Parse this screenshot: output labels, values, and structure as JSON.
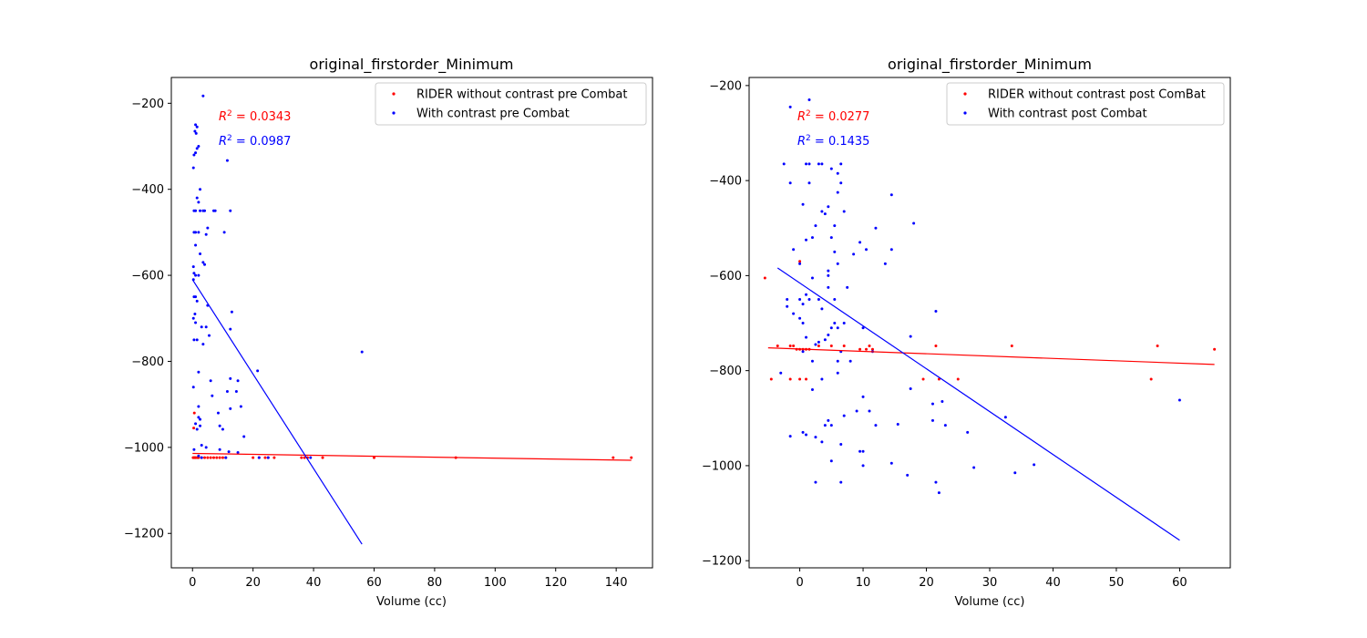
{
  "chart_data": [
    {
      "type": "scatter",
      "title": "original_firstorder_Minimum",
      "xlabel": "Volume (cc)",
      "ylabel": "",
      "xlim": [
        -7,
        152
      ],
      "ylim": [
        -1280,
        -140
      ],
      "xticks": [
        0,
        20,
        40,
        60,
        80,
        100,
        120,
        140
      ],
      "yticks": [
        -200,
        -400,
        -600,
        -800,
        -1000,
        -1200
      ],
      "xtick_labels": [
        "0",
        "20",
        "40",
        "60",
        "80",
        "100",
        "120",
        "140"
      ],
      "ytick_labels": [
        "−200",
        "−400",
        "−600",
        "−800",
        "−1000",
        "−1200"
      ],
      "legend_position": "top-right",
      "series": [
        {
          "name": "RIDER without contrast pre Combat",
          "color": "#ff0000",
          "r2_label": "= 0.0343",
          "fit": [
            [
              0,
              -1014
            ],
            [
              145,
              -1030
            ]
          ],
          "points": [
            [
              0.2,
              -1024
            ],
            [
              0.5,
              -1024
            ],
            [
              0.8,
              -1024
            ],
            [
              1,
              -1024
            ],
            [
              1.5,
              -1024
            ],
            [
              2,
              -1024
            ],
            [
              3,
              -1024
            ],
            [
              4,
              -1024
            ],
            [
              5,
              -1024
            ],
            [
              6,
              -1024
            ],
            [
              7,
              -1024
            ],
            [
              8,
              -1024
            ],
            [
              9,
              -1024
            ],
            [
              10,
              -1024
            ],
            [
              11,
              -1024
            ],
            [
              0.6,
              -920
            ],
            [
              0.4,
              -955
            ],
            [
              20,
              -1024
            ],
            [
              22,
              -1024
            ],
            [
              24,
              -1024
            ],
            [
              25,
              -1024
            ],
            [
              27,
              -1024
            ],
            [
              36,
              -1024
            ],
            [
              37,
              -1024
            ],
            [
              38,
              -1024
            ],
            [
              43,
              -1024
            ],
            [
              60,
              -1024
            ],
            [
              87,
              -1024
            ],
            [
              139,
              -1024
            ],
            [
              145,
              -1024
            ]
          ]
        },
        {
          "name": "With contrast pre Combat",
          "color": "#0000ff",
          "r2_label": "= 0.0987",
          "fit": [
            [
              0,
              -610
            ],
            [
              56,
              -1225
            ]
          ],
          "points": [
            [
              3.5,
              -183
            ],
            [
              1,
              -250
            ],
            [
              1.5,
              -255
            ],
            [
              0.8,
              -265
            ],
            [
              1.2,
              -270
            ],
            [
              2,
              -300
            ],
            [
              1.5,
              -305
            ],
            [
              0.5,
              -320
            ],
            [
              1,
              -315
            ],
            [
              0.3,
              -350
            ],
            [
              11.5,
              -333
            ],
            [
              2.5,
              -400
            ],
            [
              1.5,
              -420
            ],
            [
              2,
              -430
            ],
            [
              0.5,
              -450
            ],
            [
              1,
              -450
            ],
            [
              2.5,
              -450
            ],
            [
              3.5,
              -450
            ],
            [
              4,
              -450
            ],
            [
              7,
              -450
            ],
            [
              7.5,
              -450
            ],
            [
              12.5,
              -450
            ],
            [
              5,
              -490
            ],
            [
              0.5,
              -500
            ],
            [
              1,
              -500
            ],
            [
              2,
              -500
            ],
            [
              4.5,
              -505
            ],
            [
              10.5,
              -500
            ],
            [
              1,
              -530
            ],
            [
              2.5,
              -550
            ],
            [
              3.5,
              -570
            ],
            [
              4,
              -575
            ],
            [
              0.3,
              -580
            ],
            [
              0.5,
              -595
            ],
            [
              1,
              -600
            ],
            [
              2,
              -600
            ],
            [
              0.3,
              -610
            ],
            [
              0.5,
              -650
            ],
            [
              1,
              -650
            ],
            [
              1.5,
              -660
            ],
            [
              5,
              -670
            ],
            [
              0.8,
              -690
            ],
            [
              13,
              -685
            ],
            [
              0.3,
              -700
            ],
            [
              1,
              -710
            ],
            [
              3,
              -720
            ],
            [
              4.5,
              -720
            ],
            [
              12.5,
              -725
            ],
            [
              0.5,
              -750
            ],
            [
              1.5,
              -750
            ],
            [
              3.5,
              -760
            ],
            [
              5.5,
              -740
            ],
            [
              56,
              -778
            ],
            [
              2,
              -825
            ],
            [
              21.5,
              -822
            ],
            [
              6,
              -845
            ],
            [
              12.5,
              -840
            ],
            [
              15,
              -845
            ],
            [
              0.3,
              -860
            ],
            [
              11.5,
              -870
            ],
            [
              14.5,
              -870
            ],
            [
              6.5,
              -880
            ],
            [
              2,
              -905
            ],
            [
              12.5,
              -910
            ],
            [
              16,
              -905
            ],
            [
              8.5,
              -920
            ],
            [
              2,
              -930
            ],
            [
              2.5,
              -935
            ],
            [
              1,
              -945
            ],
            [
              2.5,
              -950
            ],
            [
              1.5,
              -958
            ],
            [
              9,
              -950
            ],
            [
              10,
              -958
            ],
            [
              17,
              -975
            ],
            [
              3,
              -995
            ],
            [
              4.5,
              -1000
            ],
            [
              0.5,
              -1005
            ],
            [
              9,
              -1005
            ],
            [
              12,
              -1010
            ],
            [
              15,
              -1012
            ],
            [
              2,
              -1020
            ],
            [
              3,
              -1024
            ],
            [
              11,
              -1024
            ],
            [
              22,
              -1024
            ],
            [
              25,
              -1024
            ],
            [
              39,
              -1024
            ]
          ]
        }
      ]
    },
    {
      "type": "scatter",
      "title": "original_firstorder_Minimum",
      "xlabel": "Volume (cc)",
      "ylabel": "",
      "xlim": [
        -8,
        68
      ],
      "ylim": [
        -1215,
        -183
      ],
      "xticks": [
        0,
        10,
        20,
        30,
        40,
        50,
        60
      ],
      "yticks": [
        -200,
        -400,
        -600,
        -800,
        -1000,
        -1200
      ],
      "xtick_labels": [
        "0",
        "10",
        "20",
        "30",
        "40",
        "50",
        "60"
      ],
      "ytick_labels": [
        "−200",
        "−400",
        "−600",
        "−800",
        "−1000",
        "−1200"
      ],
      "legend_position": "top-right",
      "series": [
        {
          "name": "RIDER without contrast post ComBat",
          "color": "#ff0000",
          "r2_label": "= 0.0277",
          "fit": [
            [
              -5,
              -752
            ],
            [
              65.5,
              -787
            ]
          ],
          "points": [
            [
              -5.5,
              -605
            ],
            [
              -4.5,
              -818
            ],
            [
              -3.5,
              -748
            ],
            [
              -1.5,
              -748
            ],
            [
              -1,
              -748
            ],
            [
              -0.5,
              -755
            ],
            [
              0,
              -755
            ],
            [
              0.5,
              -755
            ],
            [
              1,
              -755
            ],
            [
              1.5,
              -755
            ],
            [
              -1.5,
              -818
            ],
            [
              0,
              -818
            ],
            [
              1,
              -818
            ],
            [
              0,
              -570
            ],
            [
              3,
              -748
            ],
            [
              5,
              -748
            ],
            [
              7,
              -748
            ],
            [
              9.5,
              -755
            ],
            [
              10.5,
              -755
            ],
            [
              11,
              -748
            ],
            [
              11.5,
              -755
            ],
            [
              19.5,
              -818
            ],
            [
              21.5,
              -748
            ],
            [
              22,
              -818
            ],
            [
              25,
              -818
            ],
            [
              33.5,
              -748
            ],
            [
              55.5,
              -818
            ],
            [
              56.5,
              -748
            ],
            [
              65.5,
              -755
            ]
          ]
        },
        {
          "name": "With contrast post Combat",
          "color": "#0000ff",
          "r2_label": "= 0.1435",
          "fit": [
            [
              -3.5,
              -584
            ],
            [
              60,
              -1157
            ]
          ],
          "points": [
            [
              1.5,
              -230
            ],
            [
              -1.5,
              -245
            ],
            [
              -2.5,
              -365
            ],
            [
              1,
              -365
            ],
            [
              1.5,
              -365
            ],
            [
              3,
              -365
            ],
            [
              3.5,
              -365
            ],
            [
              5,
              -375
            ],
            [
              6.5,
              -365
            ],
            [
              6,
              -385
            ],
            [
              -1.5,
              -405
            ],
            [
              1.5,
              -405
            ],
            [
              6.5,
              -405
            ],
            [
              6,
              -425
            ],
            [
              14.5,
              -430
            ],
            [
              0.5,
              -450
            ],
            [
              4.5,
              -455
            ],
            [
              7,
              -465
            ],
            [
              3.5,
              -465
            ],
            [
              4,
              -470
            ],
            [
              2.5,
              -495
            ],
            [
              5.5,
              -495
            ],
            [
              12,
              -500
            ],
            [
              18,
              -490
            ],
            [
              1,
              -525
            ],
            [
              5,
              -520
            ],
            [
              2,
              -520
            ],
            [
              9.5,
              -530
            ],
            [
              10.5,
              -545
            ],
            [
              -1,
              -545
            ],
            [
              14.5,
              -545
            ],
            [
              5.5,
              -550
            ],
            [
              8.5,
              -555
            ],
            [
              6,
              -575
            ],
            [
              13.5,
              -575
            ],
            [
              0,
              -575
            ],
            [
              4.5,
              -590
            ],
            [
              4.5,
              -600
            ],
            [
              2,
              -605
            ],
            [
              1,
              -640
            ],
            [
              1.5,
              -650
            ],
            [
              7.5,
              -625
            ],
            [
              4.5,
              -625
            ],
            [
              -2,
              -650
            ],
            [
              0,
              -650
            ],
            [
              0.5,
              -660
            ],
            [
              3,
              -650
            ],
            [
              -2,
              -665
            ],
            [
              5.5,
              -650
            ],
            [
              3.5,
              -670
            ],
            [
              -1,
              -680
            ],
            [
              0,
              -690
            ],
            [
              0.5,
              -700
            ],
            [
              5.5,
              -700
            ],
            [
              5,
              -710
            ],
            [
              6,
              -710
            ],
            [
              4.5,
              -725
            ],
            [
              10,
              -710
            ],
            [
              21.5,
              -675
            ],
            [
              7,
              -700
            ],
            [
              1,
              -730
            ],
            [
              3,
              -740
            ],
            [
              2.5,
              -745
            ],
            [
              4,
              -735
            ],
            [
              0.5,
              -760
            ],
            [
              6.5,
              -760
            ],
            [
              11.5,
              -760
            ],
            [
              17.5,
              -728
            ],
            [
              2,
              -780
            ],
            [
              6,
              -780
            ],
            [
              8,
              -780
            ],
            [
              6,
              -805
            ],
            [
              -3,
              -805
            ],
            [
              3.5,
              -818
            ],
            [
              2,
              -840
            ],
            [
              17.5,
              -838
            ],
            [
              22.5,
              -865
            ],
            [
              10,
              -855
            ],
            [
              9,
              -885
            ],
            [
              11,
              -885
            ],
            [
              21,
              -870
            ],
            [
              7,
              -895
            ],
            [
              4.5,
              -905
            ],
            [
              4,
              -915
            ],
            [
              5,
              -915
            ],
            [
              12,
              -915
            ],
            [
              15.5,
              -913
            ],
            [
              21,
              -905
            ],
            [
              23,
              -915
            ],
            [
              32.5,
              -898
            ],
            [
              60,
              -862
            ],
            [
              -1.5,
              -938
            ],
            [
              0.5,
              -930
            ],
            [
              1,
              -935
            ],
            [
              2.5,
              -940
            ],
            [
              3.5,
              -950
            ],
            [
              9.5,
              -970
            ],
            [
              10,
              -970
            ],
            [
              5,
              -990
            ],
            [
              6.5,
              -955
            ],
            [
              10,
              -1000
            ],
            [
              14.5,
              -995
            ],
            [
              17,
              -1020
            ],
            [
              26.5,
              -930
            ],
            [
              27.5,
              -1004
            ],
            [
              34,
              -1015
            ],
            [
              37,
              -998
            ],
            [
              2.5,
              -1035
            ],
            [
              6.5,
              -1035
            ],
            [
              21.5,
              -1035
            ],
            [
              22,
              -1057
            ]
          ]
        }
      ]
    }
  ]
}
